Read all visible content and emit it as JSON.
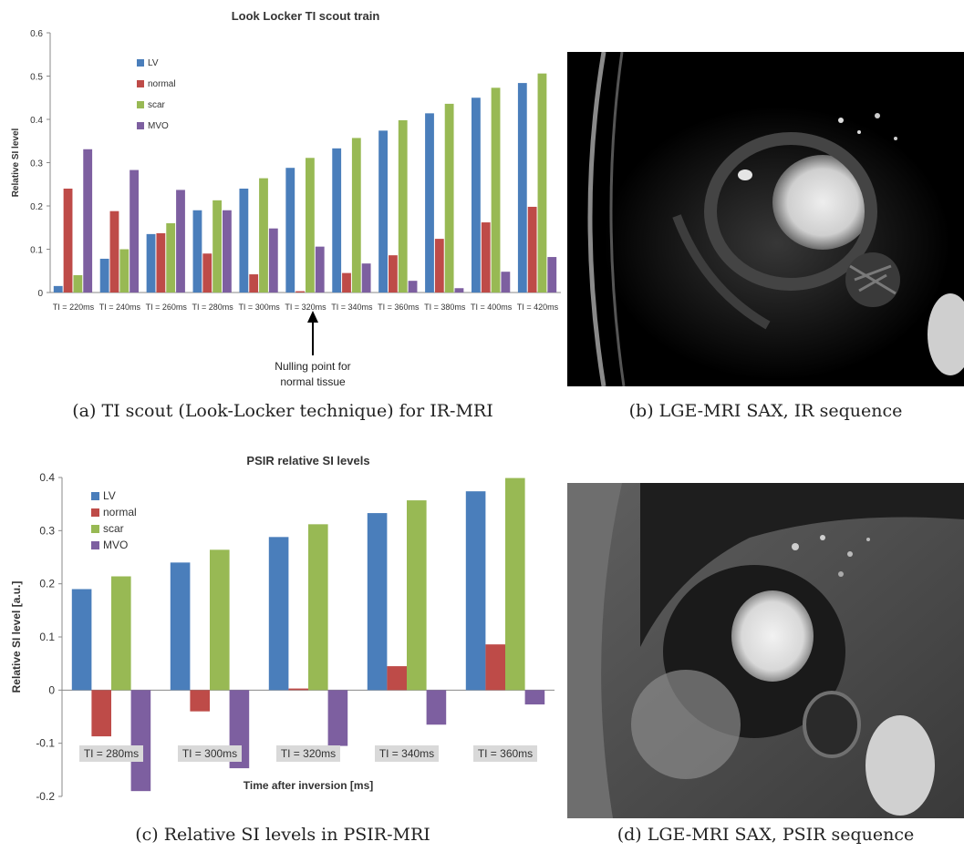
{
  "captions": {
    "a": "(a) TI scout (Look-Locker technique) for IR-MRI",
    "b": "(b) LGE-MRI SAX, IR sequence",
    "c": "(c) Relative SI levels in PSIR-MRI",
    "d": "(d) LGE-MRI SAX, PSIR sequence"
  },
  "annotation": {
    "line1": "Nulling point for",
    "line2": "normal tissue"
  },
  "colors": {
    "LV": "#4a7ebb",
    "normal": "#be4b48",
    "scar": "#98b954",
    "MVO": "#7d5fa0"
  },
  "chart_data": [
    {
      "type": "bar",
      "title": "Look Locker TI scout train",
      "xlabel": "",
      "ylabel": "Relative SI level",
      "ylim": [
        0,
        0.6
      ],
      "yticks": [
        "0",
        "0.1",
        "0.2",
        "0.3",
        "0.4",
        "0.5",
        "0.6"
      ],
      "legend_position": "top-left",
      "categories": [
        "TI = 220ms",
        "TI = 240ms",
        "TI = 260ms",
        "TI = 280ms",
        "TI = 300ms",
        "TI = 320ms",
        "TI = 340ms",
        "TI = 360ms",
        "TI = 380ms",
        "TI = 400ms",
        "TI = 420ms"
      ],
      "series": [
        {
          "name": "LV",
          "values": [
            0.015,
            0.078,
            0.135,
            0.19,
            0.24,
            0.288,
            0.333,
            0.374,
            0.414,
            0.45,
            0.484
          ]
        },
        {
          "name": "normal",
          "values": [
            0.24,
            0.188,
            0.137,
            0.09,
            0.042,
            0.003,
            0.045,
            0.086,
            0.124,
            0.162,
            0.198
          ]
        },
        {
          "name": "scar",
          "values": [
            0.04,
            0.1,
            0.16,
            0.213,
            0.264,
            0.311,
            0.357,
            0.398,
            0.436,
            0.473,
            0.506
          ]
        },
        {
          "name": "MVO",
          "values": [
            0.331,
            0.283,
            0.237,
            0.19,
            0.148,
            0.106,
            0.067,
            0.027,
            0.01,
            0.048,
            0.082
          ]
        }
      ]
    },
    {
      "type": "bar",
      "title": "PSIR relative SI levels",
      "xlabel": "Time after inversion [ms]",
      "ylabel": "Relative SI level [a.u.]",
      "ylim": [
        -0.2,
        0.4
      ],
      "yticks": [
        "-0.2",
        "-0.1",
        "0",
        "0.1",
        "0.2",
        "0.3",
        "0.4"
      ],
      "legend_position": "top-left",
      "categories": [
        "TI = 280ms",
        "TI = 300ms",
        "TI = 320ms",
        "TI = 340ms",
        "TI = 360ms"
      ],
      "series": [
        {
          "name": "LV",
          "values": [
            0.19,
            0.24,
            0.288,
            0.333,
            0.374
          ]
        },
        {
          "name": "normal",
          "values": [
            -0.087,
            -0.04,
            0.003,
            0.045,
            0.086
          ]
        },
        {
          "name": "scar",
          "values": [
            0.214,
            0.264,
            0.312,
            0.357,
            0.399
          ]
        },
        {
          "name": "MVO",
          "values": [
            -0.19,
            -0.147,
            -0.105,
            -0.065,
            -0.027
          ]
        }
      ]
    }
  ]
}
